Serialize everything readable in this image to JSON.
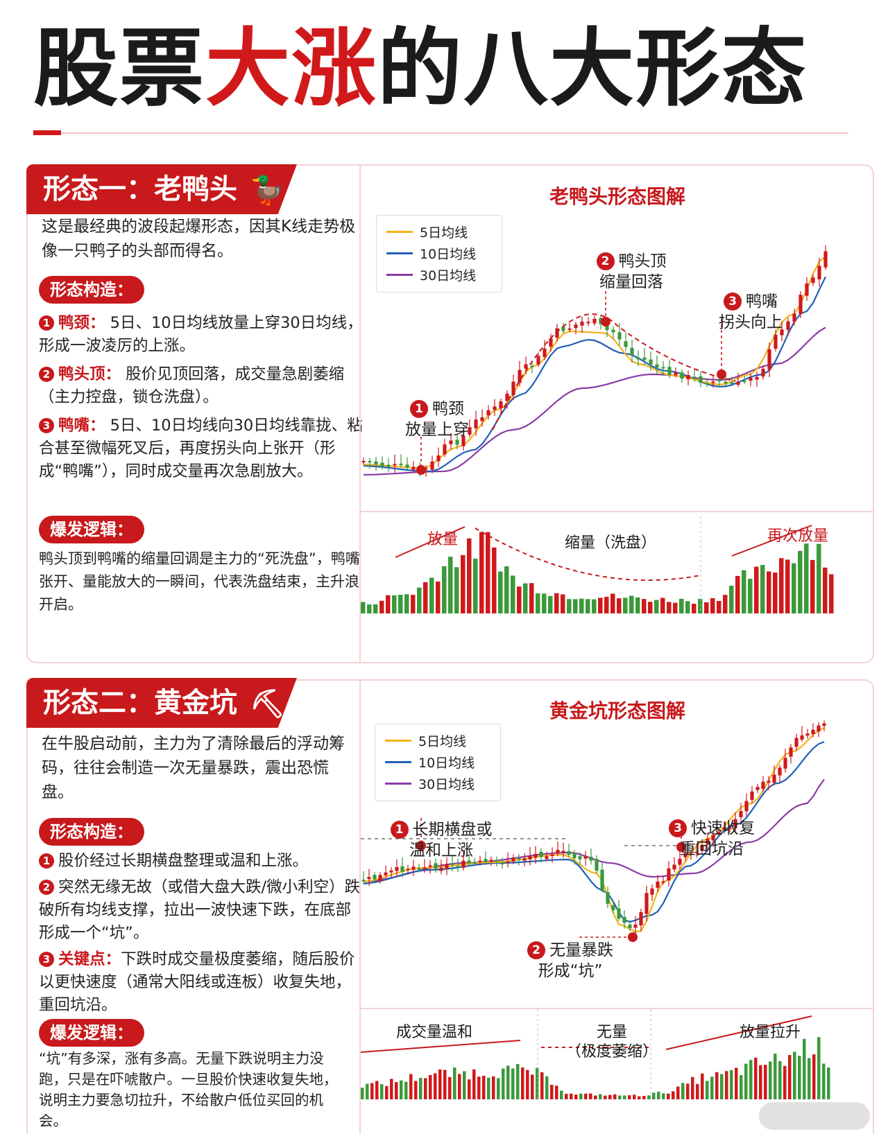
{
  "page": {
    "title_part1": "股票",
    "title_part2": "大涨",
    "title_part3": "的八大形态"
  },
  "legend": {
    "ma5": "5日均线",
    "ma10": "10日均线",
    "ma30": "30日均线"
  },
  "colors": {
    "brand_red": "#c8191c",
    "up_candle": "#d0191b",
    "down_candle": "#3a9a3a",
    "ma5": "#f2b21a",
    "ma10": "#1f5fb8",
    "ma30": "#8a3aa6"
  },
  "pattern1": {
    "ribbon": "形态一：老鸭头",
    "icon": "duck-icon",
    "intro": "这是最经典的波段起爆形态，因其K线走势极像一只鸭子的头部而得名。",
    "structure_label": "形态构造：",
    "items": [
      {
        "num": "1",
        "label": "鸭颈：",
        "text": "5日、10日均线放量上穿30日均线，形成一波凌厉的上涨。"
      },
      {
        "num": "2",
        "label": "鸭头顶：",
        "text": "股价见顶回落，成交量急剧萎缩（主力控盘，锁仓洗盘）。"
      },
      {
        "num": "3",
        "label": "鸭嘴：",
        "text": "5日、10日均线向30日均线靠拢、粘合甚至微幅死叉后，再度拐头向上张开（形成“鸭嘴”），同时成交量再次急剧放大。"
      }
    ],
    "logic_label": "爆发逻辑：",
    "logic": "鸭头顶到鸭嘴的缩量回调是主力的“死洗盘”，鸭嘴张开、量能放大的一瞬间，代表洗盘结束，主升浪开启。",
    "chart_title": "老鸭头形态图解",
    "annot1_num": "1",
    "annot1_a": "鸭颈",
    "annot1_b": "放量上穿",
    "annot2_num": "2",
    "annot2_a": "鸭头顶",
    "annot2_b": "缩量回落",
    "annot3_num": "3",
    "annot3_a": "鸭嘴",
    "annot3_b": "拐头向上",
    "vol_label1": "放量",
    "vol_label2": "缩量（洗盘）",
    "vol_label3": "再次放量"
  },
  "pattern2": {
    "ribbon": "形态二：黄金坑",
    "icon": "gold-pit-icon",
    "intro": "在牛股启动前，主力为了清除最后的浮动筹码，往往会制造一次无量暴跌，震出恐慌盘。",
    "structure_label": "形态构造：",
    "items": [
      {
        "num": "1",
        "text": "股价经过长期横盘整理或温和上涨。"
      },
      {
        "num": "2",
        "text": "突然无缘无故（或借大盘大跌/微小利空）跌破所有均线支撑，拉出一波快速下跌，在底部形成一个“坑”。"
      },
      {
        "num": "3",
        "label": "关键点：",
        "text": "下跌时成交量极度萎缩，随后股价以更快速度（通常大阳线或连板）收复失地，重回坑沿。"
      }
    ],
    "logic_label": "爆发逻辑：",
    "logic": "“坑”有多深，涨有多高。无量下跌说明主力没跑，只是在吓唬散户。一旦股价快速收复失地，说明主力要急切拉升，不给散户低位买回的机会。",
    "chart_title": "黄金坑形态图解",
    "annot1_num": "1",
    "annot1_a": "长期横盘或",
    "annot1_b": "温和上涨",
    "annot2_num": "2",
    "annot2_a": "无量暴跌",
    "annot2_b": "形成“坑”",
    "annot3_num": "3",
    "annot3_a": "快速收复",
    "annot3_b": "重回坑沿",
    "vol_label1": "成交量温和",
    "vol_label2a": "无量",
    "vol_label2b": "（极度萎缩）",
    "vol_label3": "放量拉升"
  }
}
